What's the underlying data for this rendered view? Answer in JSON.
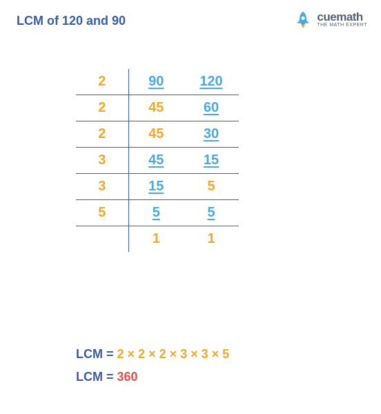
{
  "title": {
    "text": "LCM of 120 and 90",
    "color": "#3a5ca8"
  },
  "logo": {
    "brand": "cuemath",
    "tagline": "THE MATH EXPERT",
    "brand_color": "#555f7a",
    "rocket_body": "#4aa8e0",
    "rocket_flame": "#f5a623"
  },
  "table": {
    "line_color": "#3a5ca8",
    "divisor_color": "#f5a623",
    "divided_color": "#4aa8e0",
    "undivided_color": "#f5a623",
    "rows": [
      {
        "divisor": "2",
        "n1": {
          "v": "90",
          "u": true,
          "d": true
        },
        "n2": {
          "v": "120",
          "u": true,
          "d": true
        }
      },
      {
        "divisor": "2",
        "n1": {
          "v": "45",
          "u": false,
          "d": false
        },
        "n2": {
          "v": "60",
          "u": true,
          "d": true
        }
      },
      {
        "divisor": "2",
        "n1": {
          "v": "45",
          "u": false,
          "d": false
        },
        "n2": {
          "v": "30",
          "u": true,
          "d": true
        }
      },
      {
        "divisor": "3",
        "n1": {
          "v": "45",
          "u": true,
          "d": true
        },
        "n2": {
          "v": "15",
          "u": true,
          "d": true
        }
      },
      {
        "divisor": "3",
        "n1": {
          "v": "15",
          "u": true,
          "d": true
        },
        "n2": {
          "v": "5",
          "u": false,
          "d": false
        }
      },
      {
        "divisor": "5",
        "n1": {
          "v": "5",
          "u": true,
          "d": true
        },
        "n2": {
          "v": "5",
          "u": true,
          "d": true
        }
      },
      {
        "divisor": "",
        "n1": {
          "v": "1",
          "u": false,
          "d": false
        },
        "n2": {
          "v": "1",
          "u": false,
          "d": false
        }
      }
    ]
  },
  "result": {
    "label": "LCM",
    "label_color": "#3a5ca8",
    "factors_text": "2 × 2 × 2 × 3 × 3 × 5",
    "factors_color": "#f5a623",
    "product": "360",
    "product_color": "#d9534f",
    "eq_color": "#3a5ca8"
  }
}
